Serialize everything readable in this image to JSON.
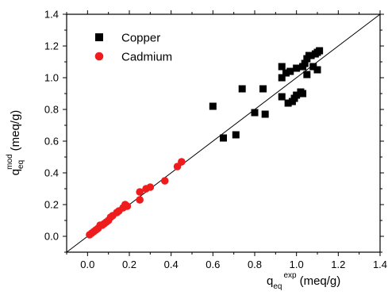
{
  "chart_data": {
    "type": "scatter",
    "title": "",
    "xlabel": {
      "main": "q",
      "sub": "eq",
      "sup": "exp",
      "unit": "(meq/g)"
    },
    "ylabel": {
      "main": "q",
      "sub": "eq",
      "sup": "mod",
      "unit": "(meq/g)"
    },
    "xlim": [
      -0.1,
      1.4
    ],
    "ylim": [
      -0.1,
      1.4
    ],
    "xticks": [
      "0.0",
      "0.2",
      "0.4",
      "0.6",
      "0.8",
      "1.0",
      "1.2",
      "1.4"
    ],
    "yticks": [
      "0.0",
      "0.2",
      "0.4",
      "0.6",
      "0.8",
      "1.0",
      "1.2",
      "1.4"
    ],
    "reference_line": {
      "type": "y=x"
    },
    "legend_position": "top-left",
    "series": [
      {
        "name": "Copper",
        "marker": "square",
        "color": "#000000",
        "points": [
          [
            0.6,
            0.82
          ],
          [
            0.65,
            0.62
          ],
          [
            0.71,
            0.64
          ],
          [
            0.74,
            0.93
          ],
          [
            0.8,
            0.78
          ],
          [
            0.84,
            0.93
          ],
          [
            0.85,
            0.77
          ],
          [
            0.93,
            1.07
          ],
          [
            0.93,
            1.0
          ],
          [
            0.93,
            0.88
          ],
          [
            0.95,
            1.03
          ],
          [
            0.96,
            0.84
          ],
          [
            0.97,
            1.04
          ],
          [
            0.98,
            0.85
          ],
          [
            0.99,
            0.87
          ],
          [
            1.0,
            1.06
          ],
          [
            1.0,
            0.89
          ],
          [
            1.02,
            0.91
          ],
          [
            1.03,
            1.07
          ],
          [
            1.03,
            0.9
          ],
          [
            1.04,
            1.09
          ],
          [
            1.05,
            1.12
          ],
          [
            1.05,
            1.02
          ],
          [
            1.06,
            1.14
          ],
          [
            1.07,
            1.14
          ],
          [
            1.08,
            1.07
          ],
          [
            1.09,
            1.15
          ],
          [
            1.1,
            1.16
          ],
          [
            1.1,
            1.05
          ],
          [
            1.11,
            1.17
          ]
        ]
      },
      {
        "name": "Cadmium",
        "marker": "circle",
        "color": "#ee1c1c",
        "points": [
          [
            0.01,
            0.01
          ],
          [
            0.02,
            0.02
          ],
          [
            0.03,
            0.03
          ],
          [
            0.04,
            0.04
          ],
          [
            0.05,
            0.05
          ],
          [
            0.06,
            0.07
          ],
          [
            0.07,
            0.07
          ],
          [
            0.08,
            0.08
          ],
          [
            0.09,
            0.09
          ],
          [
            0.1,
            0.1
          ],
          [
            0.11,
            0.12
          ],
          [
            0.12,
            0.13
          ],
          [
            0.14,
            0.15
          ],
          [
            0.15,
            0.16
          ],
          [
            0.17,
            0.18
          ],
          [
            0.18,
            0.2
          ],
          [
            0.19,
            0.19
          ],
          [
            0.25,
            0.28
          ],
          [
            0.25,
            0.23
          ],
          [
            0.28,
            0.3
          ],
          [
            0.3,
            0.31
          ],
          [
            0.37,
            0.35
          ],
          [
            0.43,
            0.44
          ],
          [
            0.45,
            0.47
          ]
        ]
      }
    ]
  }
}
